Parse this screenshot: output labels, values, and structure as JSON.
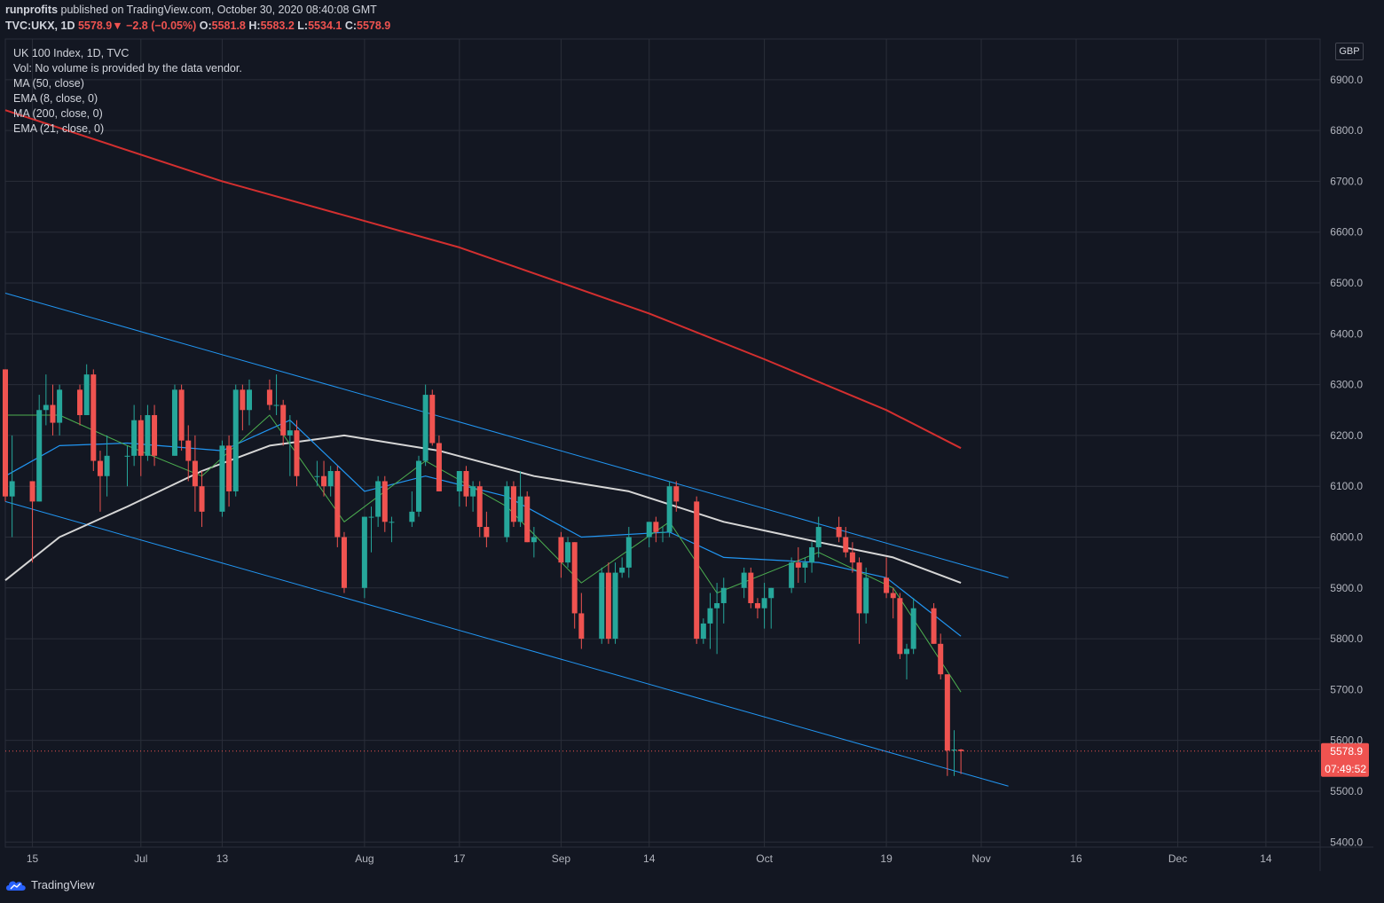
{
  "header": {
    "user": "runprofits",
    "published": " published on TradingView.com, October 30, 2020 08:40:08 GMT",
    "symbol": "TVC:UKX, 1D",
    "last": "5578.9",
    "arrow": "▼",
    "change": "−2.8 (−0.05%)",
    "o_label": "O:",
    "o": "5581.8",
    "h_label": "H:",
    "h": "5583.2",
    "l_label": "L:",
    "l": "5534.1",
    "c_label": "C:",
    "c": "5578.9"
  },
  "legend": {
    "title": "UK 100 Index, 1D, TVC",
    "vol": "Vol: No volume is provided by the data vendor.",
    "ma50": "MA (50, close)",
    "ema8": "EMA (8, close, 0)",
    "ma200": "MA (200, close, 0)",
    "ema21": "EMA (21, close, 0)"
  },
  "currency": "GBP",
  "price_flag": {
    "price": "5578.9",
    "countdown": "07:49:52"
  },
  "branding": "TradingView",
  "colors": {
    "up": "#26a69a",
    "down": "#ef5350",
    "bg": "#131722",
    "grid": "#2a2e39",
    "ma50": "#d6d6d6",
    "ema8": "#4caf50",
    "ma200": "#d32f2f",
    "ema21": "#2196f3",
    "channel": "#2196f3"
  },
  "chart_data": {
    "type": "candlestick",
    "title": "UK 100 Index, 1D, TVC",
    "y_ticks": [
      5400,
      5500,
      5600,
      5700,
      5800,
      5900,
      6000,
      6100,
      6200,
      6300,
      6400,
      6500,
      6600,
      6700,
      6800,
      6900
    ],
    "y_tick_labels": [
      "5400.0",
      "5500.0",
      "5600.0",
      "5700.0",
      "5800.0",
      "5900.0",
      "6000.0",
      "6100.0",
      "6200.0",
      "6300.0",
      "6400.0",
      "6500.0",
      "6600.0",
      "6700.0",
      "6800.0",
      "6900.0"
    ],
    "ylim": [
      5390,
      6980
    ],
    "x_ticks": [
      {
        "label": "15",
        "date": "2020-06-15"
      },
      {
        "label": "Jul",
        "date": "2020-07-01"
      },
      {
        "label": "13",
        "date": "2020-07-13"
      },
      {
        "label": "Aug",
        "date": "2020-08-03"
      },
      {
        "label": "17",
        "date": "2020-08-17"
      },
      {
        "label": "Sep",
        "date": "2020-09-01"
      },
      {
        "label": "14",
        "date": "2020-09-14"
      },
      {
        "label": "Oct",
        "date": "2020-10-01"
      },
      {
        "label": "19",
        "date": "2020-10-19"
      },
      {
        "label": "Nov",
        "date": "2020-11-02"
      },
      {
        "label": "16",
        "date": "2020-11-16"
      },
      {
        "label": "Dec",
        "date": "2020-12-01"
      },
      {
        "label": "14",
        "date": "2020-12-14"
      }
    ],
    "x_range": [
      "2020-06-11",
      "2020-12-22"
    ],
    "candles": [
      [
        "2020-06-11",
        6330,
        6330,
        6070,
        6080
      ],
      [
        "2020-06-12",
        6080,
        6200,
        6000,
        6110
      ],
      [
        "2020-06-15",
        6110,
        6110,
        5950,
        6070
      ],
      [
        "2020-06-16",
        6070,
        6280,
        6070,
        6250
      ],
      [
        "2020-06-17",
        6250,
        6320,
        6220,
        6260
      ],
      [
        "2020-06-18",
        6260,
        6300,
        6200,
        6225
      ],
      [
        "2020-06-19",
        6225,
        6300,
        6200,
        6290
      ],
      [
        "2020-06-22",
        6290,
        6300,
        6220,
        6240
      ],
      [
        "2020-06-23",
        6240,
        6340,
        6240,
        6320
      ],
      [
        "2020-06-24",
        6320,
        6330,
        6130,
        6150
      ],
      [
        "2020-06-25",
        6150,
        6170,
        6050,
        6120
      ],
      [
        "2020-06-26",
        6120,
        6200,
        6080,
        6160
      ],
      [
        "2020-06-29",
        6160,
        6180,
        6100,
        6160
      ],
      [
        "2020-06-30",
        6160,
        6260,
        6140,
        6230
      ],
      [
        "2020-07-01",
        6230,
        6240,
        6120,
        6160
      ],
      [
        "2020-07-02",
        6160,
        6260,
        6150,
        6240
      ],
      [
        "2020-07-03",
        6240,
        6260,
        6140,
        6160
      ],
      [
        "2020-07-06",
        6160,
        6300,
        6160,
        6290
      ],
      [
        "2020-07-07",
        6290,
        6300,
        6170,
        6190
      ],
      [
        "2020-07-08",
        6190,
        6220,
        6110,
        6150
      ],
      [
        "2020-07-09",
        6150,
        6200,
        6050,
        6100
      ],
      [
        "2020-07-10",
        6100,
        6130,
        6020,
        6050
      ],
      [
        "2020-07-13",
        6050,
        6190,
        6040,
        6180
      ],
      [
        "2020-07-14",
        6180,
        6200,
        6060,
        6090
      ],
      [
        "2020-07-15",
        6090,
        6300,
        6080,
        6290
      ],
      [
        "2020-07-16",
        6290,
        6300,
        6210,
        6250
      ],
      [
        "2020-07-17",
        6250,
        6310,
        6220,
        6290
      ],
      [
        "2020-07-20",
        6290,
        6310,
        6250,
        6260
      ],
      [
        "2020-07-21",
        6260,
        6320,
        6240,
        6260
      ],
      [
        "2020-07-22",
        6260,
        6270,
        6180,
        6200
      ],
      [
        "2020-07-23",
        6200,
        6240,
        6120,
        6210
      ],
      [
        "2020-07-24",
        6210,
        6230,
        6100,
        6120
      ],
      [
        "2020-07-27",
        6120,
        6150,
        6100,
        6120
      ],
      [
        "2020-07-28",
        6120,
        6150,
        6080,
        6100
      ],
      [
        "2020-07-29",
        6100,
        6140,
        6080,
        6130
      ],
      [
        "2020-07-30",
        6130,
        6140,
        5980,
        6000
      ],
      [
        "2020-07-31",
        6000,
        6010,
        5890,
        5900
      ],
      [
        "2020-08-03",
        5900,
        6040,
        5880,
        6040
      ],
      [
        "2020-08-04",
        6040,
        6060,
        5970,
        6040
      ],
      [
        "2020-08-05",
        6040,
        6120,
        6020,
        6110
      ],
      [
        "2020-08-06",
        6110,
        6120,
        6010,
        6030
      ],
      [
        "2020-08-07",
        6030,
        6040,
        5990,
        6030
      ],
      [
        "2020-08-10",
        6030,
        6090,
        6020,
        6050
      ],
      [
        "2020-08-11",
        6050,
        6160,
        6040,
        6150
      ],
      [
        "2020-08-12",
        6150,
        6300,
        6140,
        6280
      ],
      [
        "2020-08-13",
        6280,
        6290,
        6180,
        6185
      ],
      [
        "2020-08-14",
        6185,
        6200,
        6090,
        6090
      ],
      [
        "2020-08-17",
        6090,
        6130,
        6060,
        6130
      ],
      [
        "2020-08-18",
        6130,
        6140,
        6060,
        6080
      ],
      [
        "2020-08-19",
        6080,
        6110,
        6050,
        6100
      ],
      [
        "2020-08-20",
        6100,
        6110,
        6000,
        6020
      ],
      [
        "2020-08-21",
        6020,
        6050,
        5980,
        6000
      ],
      [
        "2020-08-24",
        6000,
        6110,
        5990,
        6100
      ],
      [
        "2020-08-25",
        6100,
        6110,
        6020,
        6030
      ],
      [
        "2020-08-26",
        6030,
        6130,
        6020,
        6080
      ],
      [
        "2020-08-27",
        6080,
        6090,
        5990,
        5990
      ],
      [
        "2020-08-28",
        5990,
        6020,
        5960,
        6000
      ],
      [
        "2020-09-01",
        6000,
        6010,
        5920,
        5950
      ],
      [
        "2020-09-02",
        5950,
        6000,
        5940,
        5990
      ],
      [
        "2020-09-03",
        5990,
        5990,
        5820,
        5850
      ],
      [
        "2020-09-04",
        5850,
        5890,
        5780,
        5800
      ],
      [
        "2020-09-07",
        5800,
        5940,
        5790,
        5930
      ],
      [
        "2020-09-08",
        5930,
        5950,
        5790,
        5800
      ],
      [
        "2020-09-09",
        5800,
        5950,
        5790,
        5930
      ],
      [
        "2020-09-10",
        5930,
        5960,
        5920,
        5940
      ],
      [
        "2020-09-11",
        5940,
        6020,
        5920,
        6000
      ],
      [
        "2020-09-14",
        6000,
        6030,
        5980,
        6030
      ],
      [
        "2020-09-15",
        6030,
        6040,
        5990,
        6010
      ],
      [
        "2020-09-16",
        6010,
        6020,
        5990,
        6010
      ],
      [
        "2020-09-17",
        6010,
        6110,
        6000,
        6100
      ],
      [
        "2020-09-18",
        6100,
        6110,
        6050,
        6070
      ],
      [
        "2020-09-21",
        6070,
        6080,
        5790,
        5800
      ],
      [
        "2020-09-22",
        5800,
        5840,
        5790,
        5830
      ],
      [
        "2020-09-23",
        5830,
        5890,
        5780,
        5860
      ],
      [
        "2020-09-24",
        5860,
        5910,
        5770,
        5870
      ],
      [
        "2020-09-25",
        5870,
        5920,
        5830,
        5900
      ],
      [
        "2020-09-28",
        5900,
        5940,
        5880,
        5930
      ],
      [
        "2020-09-29",
        5930,
        5940,
        5860,
        5870
      ],
      [
        "2020-09-30",
        5870,
        5880,
        5840,
        5860
      ],
      [
        "2020-10-01",
        5860,
        5910,
        5820,
        5880
      ],
      [
        "2020-10-02",
        5880,
        5900,
        5820,
        5900
      ],
      [
        "2020-10-05",
        5900,
        5960,
        5890,
        5950
      ],
      [
        "2020-10-06",
        5950,
        5980,
        5910,
        5940
      ],
      [
        "2020-10-07",
        5940,
        5960,
        5910,
        5950
      ],
      [
        "2020-10-08",
        5950,
        5990,
        5930,
        5980
      ],
      [
        "2020-10-09",
        5980,
        6040,
        5960,
        6020
      ],
      [
        "2020-10-12",
        6020,
        6040,
        5990,
        6000
      ],
      [
        "2020-10-13",
        6000,
        6020,
        5960,
        5970
      ],
      [
        "2020-10-14",
        5970,
        5990,
        5930,
        5950
      ],
      [
        "2020-10-15",
        5950,
        5960,
        5790,
        5850
      ],
      [
        "2020-10-16",
        5850,
        5940,
        5830,
        5920
      ],
      [
        "2020-10-19",
        5920,
        5960,
        5880,
        5890
      ],
      [
        "2020-10-20",
        5890,
        5900,
        5840,
        5880
      ],
      [
        "2020-10-21",
        5880,
        5890,
        5760,
        5770
      ],
      [
        "2020-10-22",
        5770,
        5790,
        5720,
        5780
      ],
      [
        "2020-10-23",
        5780,
        5880,
        5770,
        5860
      ],
      [
        "2020-10-26",
        5860,
        5870,
        5790,
        5790
      ],
      [
        "2020-10-27",
        5790,
        5810,
        5720,
        5730
      ],
      [
        "2020-10-28",
        5730,
        5730,
        5530,
        5580
      ],
      [
        "2020-10-29",
        5580,
        5620,
        5530,
        5582
      ],
      [
        "2020-10-30",
        5582,
        5583,
        5534,
        5579
      ]
    ],
    "channel_upper": [
      [
        "2020-06-11",
        6480
      ],
      [
        "2020-11-06",
        5920
      ]
    ],
    "channel_lower": [
      [
        "2020-06-11",
        6070
      ],
      [
        "2020-11-06",
        5510
      ]
    ],
    "ma200": [
      [
        "2020-06-11",
        6840
      ],
      [
        "2020-07-13",
        6700
      ],
      [
        "2020-08-17",
        6570
      ],
      [
        "2020-09-14",
        6440
      ],
      [
        "2020-10-01",
        6350
      ],
      [
        "2020-10-19",
        6250
      ],
      [
        "2020-10-30",
        6175
      ]
    ],
    "ma50": [
      [
        "2020-06-11",
        5915
      ],
      [
        "2020-06-19",
        6000
      ],
      [
        "2020-06-29",
        6060
      ],
      [
        "2020-07-10",
        6130
      ],
      [
        "2020-07-20",
        6180
      ],
      [
        "2020-07-31",
        6200
      ],
      [
        "2020-08-14",
        6170
      ],
      [
        "2020-08-28",
        6120
      ],
      [
        "2020-09-11",
        6090
      ],
      [
        "2020-09-25",
        6030
      ],
      [
        "2020-10-09",
        5990
      ],
      [
        "2020-10-20",
        5960
      ],
      [
        "2020-10-30",
        5910
      ]
    ],
    "ema21": [
      [
        "2020-06-11",
        6120
      ],
      [
        "2020-06-19",
        6180
      ],
      [
        "2020-06-29",
        6185
      ],
      [
        "2020-07-13",
        6170
      ],
      [
        "2020-07-23",
        6230
      ],
      [
        "2020-08-03",
        6090
      ],
      [
        "2020-08-12",
        6120
      ],
      [
        "2020-08-24",
        6080
      ],
      [
        "2020-09-04",
        6000
      ],
      [
        "2020-09-17",
        6010
      ],
      [
        "2020-09-25",
        5960
      ],
      [
        "2020-10-09",
        5950
      ],
      [
        "2020-10-19",
        5920
      ],
      [
        "2020-10-30",
        5805
      ]
    ],
    "ema8": [
      [
        "2020-06-11",
        6240
      ],
      [
        "2020-06-19",
        6240
      ],
      [
        "2020-06-29",
        6180
      ],
      [
        "2020-07-10",
        6120
      ],
      [
        "2020-07-20",
        6240
      ],
      [
        "2020-07-31",
        6030
      ],
      [
        "2020-08-12",
        6150
      ],
      [
        "2020-08-24",
        6060
      ],
      [
        "2020-09-04",
        5910
      ],
      [
        "2020-09-17",
        6030
      ],
      [
        "2020-09-24",
        5890
      ],
      [
        "2020-10-09",
        5970
      ],
      [
        "2020-10-20",
        5900
      ],
      [
        "2020-10-30",
        5695
      ]
    ],
    "last_price": 5578.9
  }
}
